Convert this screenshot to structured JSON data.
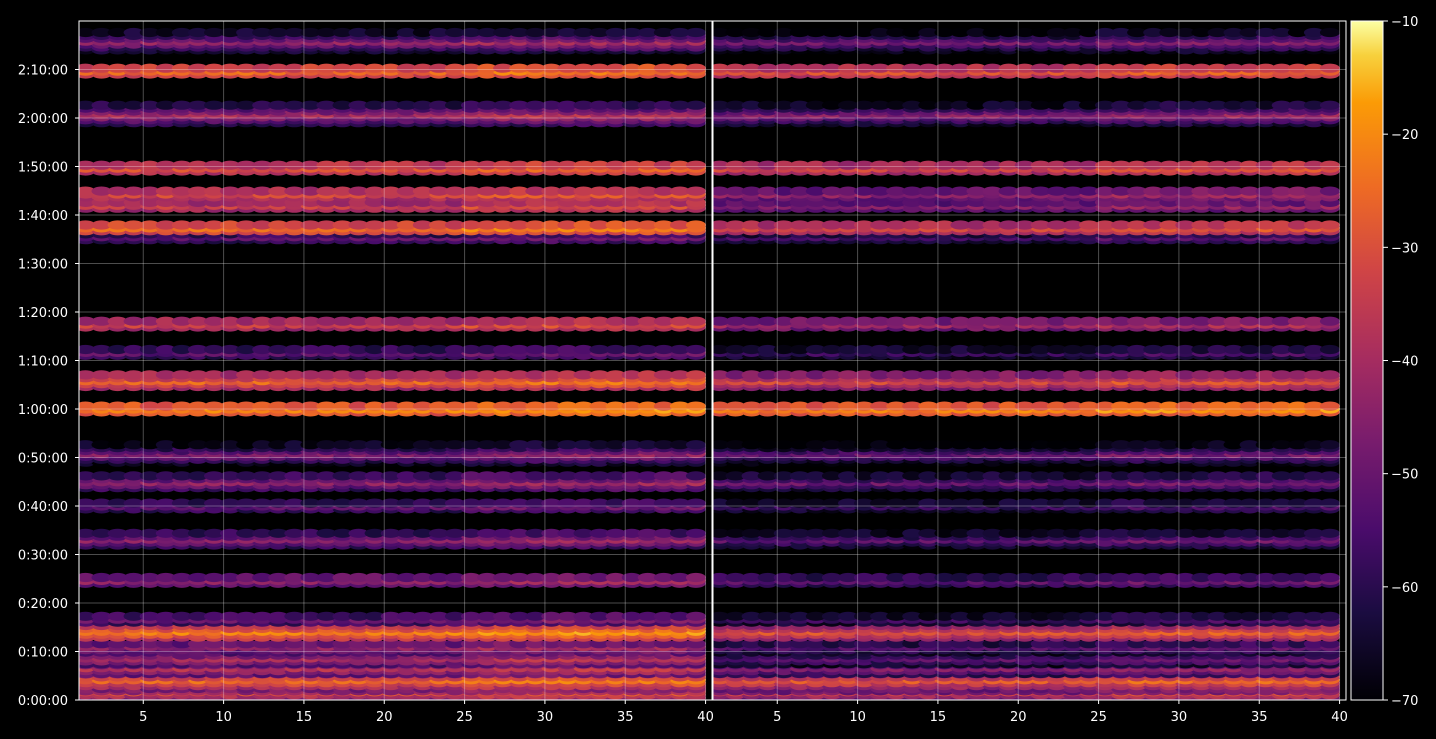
{
  "chart_data": {
    "type": "heatmap",
    "panels": [
      {
        "name": "",
        "x": {
          "min": 1,
          "max": 40,
          "ticks": [
            5,
            10,
            15,
            20,
            25,
            30,
            35,
            40
          ]
        },
        "y": {
          "min_seconds": 0,
          "max_seconds": 8400
        }
      },
      {
        "name": "",
        "x": {
          "min": 1,
          "max": 40,
          "ticks": [
            5,
            10,
            15,
            20,
            25,
            30,
            35,
            40
          ]
        },
        "y": {
          "min_seconds": 0,
          "max_seconds": 8400
        }
      }
    ],
    "y_tick_labels": [
      "0:00:00",
      "0:10:00",
      "0:20:00",
      "0:30:00",
      "0:40:00",
      "0:50:00",
      "1:00:00",
      "1:10:00",
      "1:20:00",
      "1:30:00",
      "1:40:00",
      "1:50:00",
      "2:00:00",
      "2:10:00"
    ],
    "y_tick_seconds": [
      0,
      600,
      1200,
      1800,
      2400,
      3000,
      3600,
      4200,
      4800,
      5400,
      6000,
      6600,
      7200,
      7800
    ],
    "bands": [
      {
        "t": 100,
        "v": -32,
        "right_v": -35,
        "spread": 2
      },
      {
        "t": 150,
        "v": -36,
        "right_v": -42,
        "spread": 1
      },
      {
        "t": 250,
        "v": -26,
        "right_v": -29,
        "spread": 3
      },
      {
        "t": 400,
        "v": -38,
        "right_v": -46,
        "spread": 2
      },
      {
        "t": 520,
        "v": -40,
        "right_v": -52,
        "spread": 2
      },
      {
        "t": 660,
        "v": -44,
        "right_v": -54,
        "spread": 1
      },
      {
        "t": 850,
        "v": -22,
        "right_v": -30,
        "spread": 2
      },
      {
        "t": 1000,
        "v": -50,
        "right_v": -58,
        "spread": 1
      },
      {
        "t": 1480,
        "v": -44,
        "right_v": -52,
        "spread": 1
      },
      {
        "t": 1990,
        "v": -45,
        "right_v": -52,
        "spread": 2
      },
      {
        "t": 2400,
        "v": -52,
        "right_v": -58,
        "spread": 1
      },
      {
        "t": 2700,
        "v": -44,
        "right_v": -50,
        "spread": 2
      },
      {
        "t": 3050,
        "v": -46,
        "right_v": -50,
        "spread": 3
      },
      {
        "t": 3600,
        "v": -22,
        "right_v": -22,
        "spread": 1
      },
      {
        "t": 3950,
        "v": -26,
        "right_v": -32,
        "spread": 2
      },
      {
        "t": 4300,
        "v": -52,
        "right_v": -58,
        "spread": 1
      },
      {
        "t": 4650,
        "v": -34,
        "right_v": -42,
        "spread": 1
      },
      {
        "t": 5730,
        "v": -52,
        "right_v": -56,
        "spread": 1
      },
      {
        "t": 5840,
        "v": -25,
        "right_v": -32,
        "spread": 1
      },
      {
        "t": 6120,
        "v": -34,
        "right_v": -46,
        "spread": 1
      },
      {
        "t": 6260,
        "v": -32,
        "right_v": -44,
        "spread": 1
      },
      {
        "t": 6580,
        "v": -30,
        "right_v": -33,
        "spread": 1
      },
      {
        "t": 7250,
        "v": -40,
        "right_v": -45,
        "spread": 3
      },
      {
        "t": 7780,
        "v": -26,
        "right_v": -30,
        "spread": 1
      },
      {
        "t": 8150,
        "v": -44,
        "right_v": -48,
        "spread": 3
      }
    ],
    "colorbar": {
      "colormap": "inferno",
      "min": -70,
      "max": -10,
      "ticks": [
        -10,
        -20,
        -30,
        -40,
        -50,
        -60,
        -70
      ],
      "tick_labels": [
        "−10",
        "−20",
        "−30",
        "−40",
        "−50",
        "−60",
        "−70"
      ]
    },
    "grid": true,
    "background": "#000000"
  }
}
